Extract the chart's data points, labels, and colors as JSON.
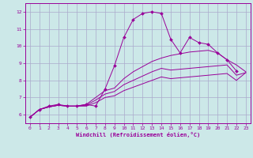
{
  "background_color": "#cce8e8",
  "plot_bg_color": "#cce8e8",
  "line_color": "#990099",
  "grid_color": "#aaaacc",
  "xlabel": "Windchill (Refroidissement éolien,°C)",
  "xlim": [
    -0.5,
    23.5
  ],
  "ylim": [
    5.5,
    12.5
  ],
  "yticks": [
    6,
    7,
    8,
    9,
    10,
    11,
    12
  ],
  "xticks": [
    0,
    1,
    2,
    3,
    4,
    5,
    6,
    7,
    8,
    9,
    10,
    11,
    12,
    13,
    14,
    15,
    16,
    17,
    18,
    19,
    20,
    21,
    22,
    23
  ],
  "line1_x": [
    0,
    1,
    2,
    3,
    4,
    5,
    6,
    7,
    8,
    9,
    10,
    11,
    12,
    13,
    14,
    15,
    16,
    17,
    18,
    19,
    20,
    21,
    22
  ],
  "line1_y": [
    5.85,
    6.3,
    6.5,
    6.6,
    6.5,
    6.5,
    6.6,
    6.5,
    7.5,
    8.85,
    10.5,
    11.55,
    11.9,
    12.0,
    11.9,
    10.4,
    9.6,
    10.5,
    10.2,
    10.1,
    9.6,
    9.2,
    8.55
  ],
  "line2_x": [
    0,
    1,
    2,
    3,
    4,
    5,
    6,
    7,
    8,
    9,
    10,
    11,
    12,
    13,
    14,
    15,
    16,
    17,
    18,
    19,
    20,
    21,
    22,
    23
  ],
  "line2_y": [
    5.85,
    6.3,
    6.45,
    6.55,
    6.5,
    6.5,
    6.6,
    7.0,
    7.4,
    7.55,
    8.1,
    8.5,
    8.8,
    9.1,
    9.3,
    9.45,
    9.55,
    9.65,
    9.7,
    9.75,
    9.6,
    9.2,
    8.9,
    8.5
  ],
  "line3_x": [
    0,
    1,
    2,
    3,
    4,
    5,
    6,
    7,
    8,
    9,
    10,
    11,
    12,
    13,
    14,
    15,
    16,
    17,
    18,
    19,
    20,
    21,
    22,
    23
  ],
  "line3_y": [
    5.85,
    6.3,
    6.45,
    6.55,
    6.5,
    6.5,
    6.55,
    6.85,
    7.2,
    7.35,
    7.75,
    8.0,
    8.25,
    8.5,
    8.7,
    8.6,
    8.65,
    8.7,
    8.75,
    8.8,
    8.85,
    8.9,
    8.3,
    8.45
  ],
  "line4_x": [
    0,
    1,
    2,
    3,
    4,
    5,
    6,
    7,
    8,
    9,
    10,
    11,
    12,
    13,
    14,
    15,
    16,
    17,
    18,
    19,
    20,
    21,
    22,
    23
  ],
  "line4_y": [
    5.85,
    6.3,
    6.45,
    6.55,
    6.5,
    6.5,
    6.5,
    6.7,
    7.0,
    7.1,
    7.4,
    7.6,
    7.8,
    8.0,
    8.2,
    8.1,
    8.15,
    8.2,
    8.25,
    8.3,
    8.35,
    8.4,
    8.0,
    8.45
  ]
}
